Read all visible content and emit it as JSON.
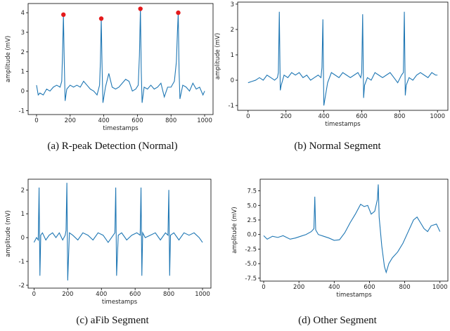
{
  "chart_data": [
    {
      "type": "line",
      "caption": "(a)  R-peak Detection (Normal)",
      "xlabel": "timestamps",
      "ylabel": "amplitude (mV)",
      "xlim": [
        -50,
        1050
      ],
      "ylim": [
        -1.2,
        4.47
      ],
      "xticks": [
        0,
        200,
        400,
        600,
        800,
        1000
      ],
      "yticks": [
        -1,
        0,
        1,
        2,
        3,
        4
      ],
      "series": [
        {
          "color": "#1f77b4",
          "x": [
            0,
            10,
            20,
            40,
            60,
            80,
            100,
            120,
            140,
            150,
            155,
            160,
            165,
            170,
            180,
            200,
            220,
            240,
            260,
            280,
            300,
            320,
            340,
            360,
            375,
            380,
            385,
            390,
            395,
            410,
            430,
            450,
            470,
            490,
            510,
            530,
            550,
            570,
            590,
            605,
            612,
            618,
            623,
            628,
            640,
            660,
            680,
            700,
            720,
            740,
            760,
            780,
            800,
            820,
            832,
            838,
            843,
            848,
            853,
            870,
            890,
            910,
            930,
            950,
            970,
            990,
            1000
          ],
          "values": [
            0.3,
            -0.2,
            -0.1,
            -0.2,
            0.1,
            0.0,
            0.2,
            0.3,
            0.2,
            0.5,
            2.0,
            3.9,
            1.5,
            -0.5,
            0.1,
            0.3,
            0.2,
            0.3,
            0.2,
            0.5,
            0.3,
            0.1,
            0.0,
            -0.2,
            0.3,
            1.5,
            3.7,
            1.2,
            -0.6,
            0.2,
            0.9,
            0.2,
            0.1,
            0.2,
            0.4,
            0.6,
            0.5,
            0.0,
            0.1,
            0.3,
            1.8,
            4.2,
            1.0,
            -0.6,
            0.2,
            0.1,
            0.3,
            0.1,
            0.2,
            0.4,
            -0.3,
            0.2,
            0.2,
            0.5,
            1.5,
            3.0,
            4.0,
            1.0,
            -0.4,
            0.3,
            0.2,
            0.0,
            0.4,
            0.1,
            0.2,
            -0.2,
            0.0
          ]
        },
        {
          "color": "#e41a1c",
          "style": "markers",
          "x": [
            160,
            385,
            618,
            843
          ],
          "values": [
            3.9,
            3.7,
            4.2,
            4.0
          ]
        }
      ]
    },
    {
      "type": "line",
      "caption": "(b)  Normal Segment",
      "xlabel": "timestamps",
      "ylabel": "amplitude (mV)",
      "xlim": [
        -55,
        1055
      ],
      "ylim": [
        -1.19,
        3.08
      ],
      "xticks": [
        0,
        200,
        400,
        600,
        800,
        1000
      ],
      "yticks": [
        -1,
        0,
        1,
        2,
        3
      ],
      "series": [
        {
          "color": "#1f77b4",
          "x": [
            0,
            20,
            40,
            60,
            80,
            100,
            120,
            140,
            155,
            160,
            165,
            170,
            175,
            190,
            210,
            230,
            250,
            270,
            290,
            310,
            330,
            350,
            370,
            385,
            390,
            395,
            400,
            420,
            440,
            460,
            480,
            500,
            520,
            540,
            560,
            580,
            595,
            600,
            605,
            610,
            615,
            630,
            650,
            670,
            690,
            710,
            730,
            750,
            770,
            790,
            810,
            820,
            825,
            830,
            835,
            850,
            870,
            890,
            910,
            930,
            950,
            970,
            990,
            1000
          ],
          "values": [
            -0.1,
            -0.05,
            0.0,
            0.1,
            0.0,
            0.2,
            0.1,
            0.0,
            0.1,
            0.3,
            2.7,
            -0.4,
            -0.2,
            0.2,
            0.1,
            0.3,
            0.2,
            0.3,
            0.1,
            0.2,
            0.0,
            0.1,
            0.2,
            0.1,
            0.5,
            2.4,
            -1.0,
            -0.1,
            0.3,
            0.2,
            0.1,
            0.3,
            0.2,
            0.1,
            0.2,
            0.3,
            0.1,
            0.3,
            2.6,
            -0.7,
            -0.2,
            0.1,
            0.0,
            0.3,
            0.2,
            0.1,
            0.2,
            0.3,
            0.1,
            -0.1,
            0.2,
            0.3,
            2.7,
            -0.6,
            -0.2,
            0.1,
            0.0,
            0.2,
            0.3,
            0.2,
            0.1,
            0.3,
            0.2,
            0.2
          ]
        }
      ]
    },
    {
      "type": "line",
      "caption": "(c)  aFib Segment",
      "xlabel": "timestamps",
      "ylabel": "amplitude (mV)",
      "xlim": [
        -35,
        1050
      ],
      "ylim": [
        -2.12,
        2.45
      ],
      "xticks": [
        0,
        200,
        400,
        600,
        800,
        1000
      ],
      "yticks": [
        -2,
        -1,
        0,
        1,
        2
      ],
      "series": [
        {
          "color": "#1f77b4",
          "x": [
            0,
            15,
            25,
            30,
            35,
            40,
            50,
            70,
            90,
            110,
            130,
            150,
            170,
            185,
            190,
            195,
            200,
            210,
            230,
            260,
            290,
            320,
            350,
            380,
            410,
            440,
            470,
            480,
            485,
            490,
            500,
            520,
            550,
            580,
            610,
            630,
            635,
            640,
            645,
            660,
            690,
            720,
            750,
            780,
            795,
            800,
            805,
            810,
            830,
            860,
            890,
            920,
            950,
            980,
            1000
          ],
          "values": [
            -0.2,
            0.0,
            -0.1,
            2.1,
            -1.6,
            0.1,
            0.2,
            -0.1,
            0.1,
            0.2,
            0.0,
            0.2,
            -0.1,
            0.1,
            0.3,
            2.3,
            -1.8,
            0.2,
            0.1,
            -0.1,
            0.2,
            0.1,
            -0.1,
            0.2,
            0.1,
            -0.2,
            0.1,
            0.2,
            2.1,
            -1.6,
            0.1,
            0.2,
            -0.1,
            0.1,
            0.2,
            0.1,
            2.1,
            -1.6,
            0.2,
            0.0,
            0.1,
            0.2,
            -0.1,
            0.2,
            0.1,
            2.0,
            -1.6,
            0.1,
            0.2,
            -0.1,
            0.2,
            0.1,
            0.2,
            0.0,
            -0.2
          ]
        }
      ]
    },
    {
      "type": "line",
      "caption": "(d)  Other Segment",
      "xlabel": "timestamps",
      "ylabel": "amplitude (mV)",
      "xlim": [
        -20,
        1045
      ],
      "ylim": [
        -8.0,
        9.5
      ],
      "xticks": [
        0,
        200,
        400,
        600,
        800,
        1000
      ],
      "yticks": [
        -7.5,
        {
          "value": -5,
          "label": "-5.0"
        },
        -2.5,
        {
          "value": 0,
          "label": "0.0"
        },
        2.5,
        {
          "value": 5,
          "label": "5.0"
        },
        7.5
      ],
      "series": [
        {
          "color": "#1f77b4",
          "x": [
            0,
            20,
            50,
            80,
            110,
            150,
            180,
            210,
            240,
            270,
            285,
            290,
            295,
            310,
            340,
            370,
            400,
            430,
            460,
            490,
            520,
            550,
            570,
            590,
            610,
            630,
            645,
            650,
            655,
            670,
            685,
            695,
            710,
            730,
            760,
            790,
            820,
            850,
            870,
            890,
            910,
            930,
            950,
            980,
            1000
          ],
          "values": [
            -0.2,
            -0.8,
            -0.3,
            -0.5,
            -0.2,
            -0.8,
            -0.6,
            -0.3,
            0.0,
            0.5,
            1.0,
            6.5,
            0.8,
            0.0,
            -0.3,
            -0.6,
            -1.0,
            -0.9,
            0.3,
            2.0,
            3.5,
            5.2,
            4.8,
            5.0,
            3.5,
            4.0,
            6.0,
            8.6,
            3.0,
            -2.0,
            -5.5,
            -6.5,
            -5.0,
            -4.0,
            -3.0,
            -1.5,
            0.5,
            2.5,
            3.0,
            2.0,
            1.0,
            0.5,
            1.5,
            1.8,
            0.5
          ]
        }
      ]
    }
  ]
}
